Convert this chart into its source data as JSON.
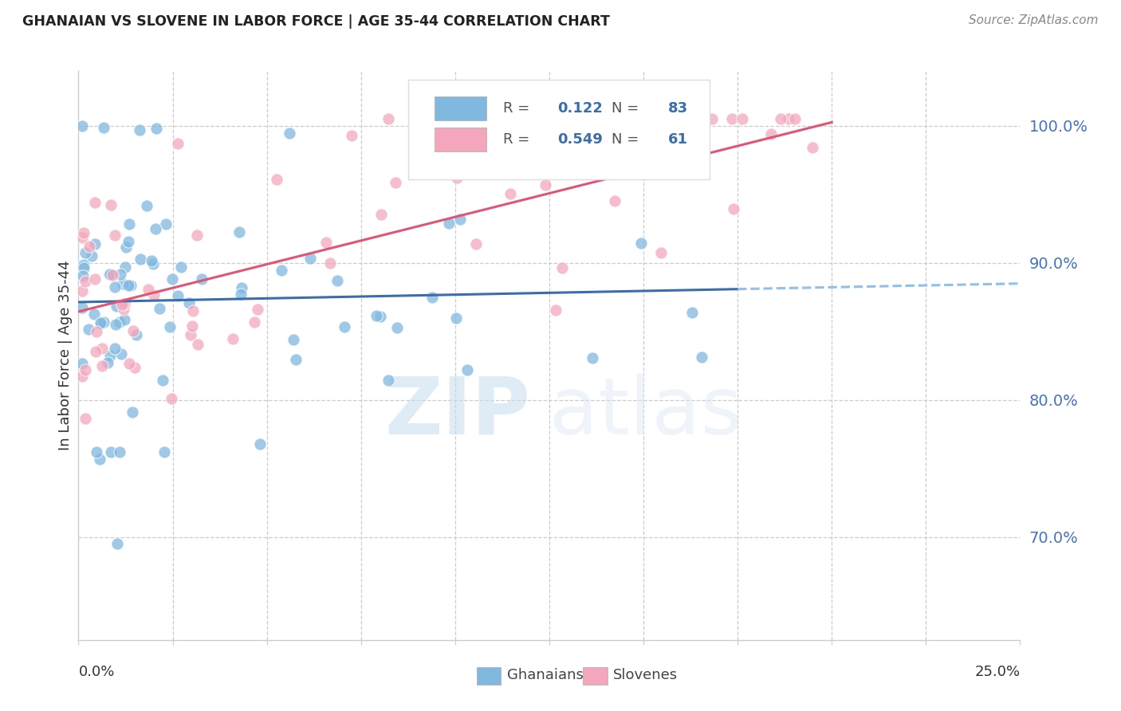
{
  "title": "GHANAIAN VS SLOVENE IN LABOR FORCE | AGE 35-44 CORRELATION CHART",
  "source": "Source: ZipAtlas.com",
  "ylabel": "In Labor Force | Age 35-44",
  "ytick_values": [
    0.7,
    0.8,
    0.9,
    1.0
  ],
  "ytick_labels": [
    "70.0%",
    "80.0%",
    "90.0%",
    "100.0%"
  ],
  "xlim": [
    0.0,
    0.25
  ],
  "ylim": [
    0.625,
    1.04
  ],
  "watermark_zip": "ZIP",
  "watermark_atlas": "atlas",
  "legend_R1": "0.122",
  "legend_N1": "83",
  "legend_R2": "0.549",
  "legend_N2": "61",
  "blue_color": "#80b8e0",
  "pink_color": "#f4a7bc",
  "blue_line_color": "#3a6eaa",
  "pink_line_color": "#e05575",
  "dashed_line_color": "#90c0e8",
  "grid_color": "#cccccc",
  "title_color": "#222222",
  "source_color": "#888888",
  "axis_label_color": "#333333",
  "tick_label_color": "#4472c4",
  "legend_text_color": "#555555",
  "legend_value_color": "#3a6eaa"
}
